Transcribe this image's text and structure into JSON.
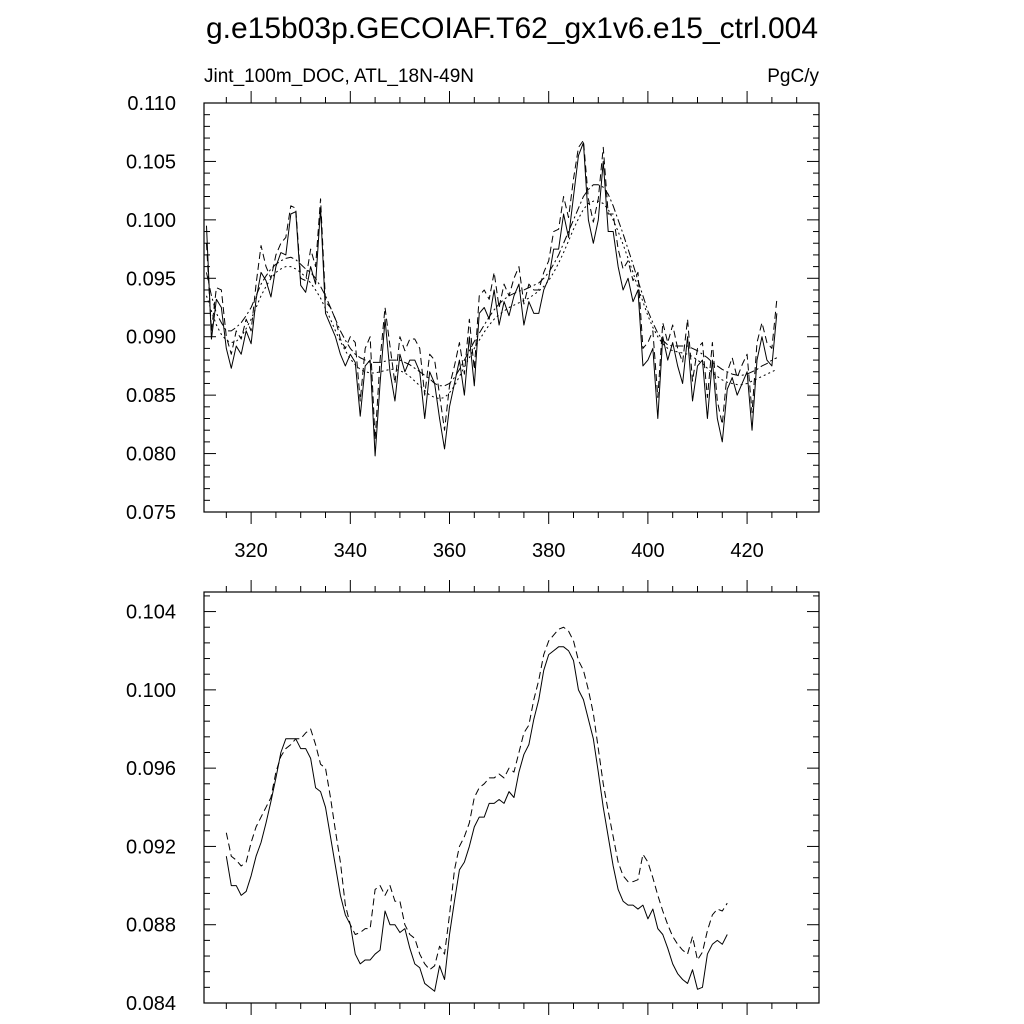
{
  "title": "g.e15b03p.GECOIAF.T62_gx1v6.e15_ctrl.004",
  "chart_data": [
    {
      "type": "line",
      "left_label": "Jint_100m_DOC, ATL_18N-49N",
      "right_label": "PgC/y",
      "xlim": [
        310.5,
        434.5
      ],
      "ylim": [
        0.075,
        0.11
      ],
      "xticks": [
        320,
        340,
        360,
        380,
        400,
        420
      ],
      "yticks": [
        0.075,
        0.08,
        0.085,
        0.09,
        0.095,
        0.1,
        0.105,
        0.11
      ],
      "ytick_labels": [
        "0.075",
        "0.080",
        "0.085",
        "0.090",
        "0.095",
        "0.100",
        "0.105",
        "0.110"
      ],
      "x_start": 311,
      "series": [
        {
          "style": "solid",
          "values": [
            0.0995,
            0.0898,
            0.0932,
            0.0925,
            0.089,
            0.0873,
            0.0892,
            0.0885,
            0.0905,
            0.0894,
            0.0932,
            0.0955,
            0.0948,
            0.0934,
            0.096,
            0.0972,
            0.097,
            0.1005,
            0.1007,
            0.0944,
            0.0938,
            0.096,
            0.0945,
            0.101,
            0.092,
            0.091,
            0.09,
            0.0885,
            0.0875,
            0.0885,
            0.0878,
            0.0832,
            0.0875,
            0.088,
            0.0798,
            0.086,
            0.0915,
            0.087,
            0.0845,
            0.0885,
            0.087,
            0.088,
            0.088,
            0.087,
            0.083,
            0.087,
            0.086,
            0.083,
            0.0804,
            0.084,
            0.086,
            0.088,
            0.085,
            0.09,
            0.0858,
            0.092,
            0.0925,
            0.0915,
            0.094,
            0.091,
            0.093,
            0.0918,
            0.0935,
            0.0945,
            0.091,
            0.093,
            0.092,
            0.092,
            0.094,
            0.095,
            0.0975,
            0.0975,
            0.1005,
            0.0985,
            0.102,
            0.1055,
            0.1066,
            0.1,
            0.098,
            0.1,
            0.105,
            0.099,
            0.099,
            0.096,
            0.094,
            0.095,
            0.093,
            0.094,
            0.0875,
            0.088,
            0.089,
            0.083,
            0.09,
            0.088,
            0.0895,
            0.0875,
            0.086,
            0.09,
            0.0845,
            0.0875,
            0.088,
            0.083,
            0.088,
            0.083,
            0.081,
            0.0855,
            0.0865,
            0.085,
            0.086,
            0.087,
            0.082,
            0.088,
            0.09,
            0.088,
            0.0875,
            0.092
          ]
        },
        {
          "style": "dashed",
          "values": [
            0.098,
            0.0905,
            0.0942,
            0.094,
            0.09,
            0.0885,
            0.0905,
            0.0898,
            0.0915,
            0.0905,
            0.0945,
            0.0978,
            0.096,
            0.095,
            0.097,
            0.098,
            0.0985,
            0.1012,
            0.101,
            0.095,
            0.0948,
            0.0975,
            0.096,
            0.1018,
            0.093,
            0.0925,
            0.0915,
            0.0898,
            0.089,
            0.09,
            0.0895,
            0.0845,
            0.089,
            0.09,
            0.0812,
            0.088,
            0.0925,
            0.0892,
            0.086,
            0.09,
            0.0888,
            0.0898,
            0.0898,
            0.089,
            0.085,
            0.0885,
            0.088,
            0.085,
            0.082,
            0.0858,
            0.0875,
            0.0895,
            0.0868,
            0.0915,
            0.0872,
            0.0935,
            0.094,
            0.0932,
            0.0955,
            0.0925,
            0.0945,
            0.0935,
            0.095,
            0.096,
            0.0928,
            0.0945,
            0.094,
            0.094,
            0.0955,
            0.0965,
            0.099,
            0.0992,
            0.102,
            0.1002,
            0.1035,
            0.1062,
            0.1068,
            0.1018,
            0.0998,
            0.1018,
            0.1062,
            0.1005,
            0.1005,
            0.0975,
            0.0958,
            0.0965,
            0.0948,
            0.0955,
            0.089,
            0.0895,
            0.0905,
            0.0848,
            0.0912,
            0.0895,
            0.091,
            0.089,
            0.0878,
            0.0915,
            0.0862,
            0.089,
            0.0895,
            0.0848,
            0.0895,
            0.0845,
            0.0825,
            0.087,
            0.0882,
            0.0865,
            0.0876,
            0.0885,
            0.0835,
            0.0895,
            0.0912,
            0.0895,
            0.089,
            0.0932
          ]
        },
        {
          "style": "dash-dot",
          "values": [
            0.0955,
            0.0935,
            0.092,
            0.0912,
            0.0905,
            0.0905,
            0.0908,
            0.0912,
            0.0918,
            0.0925,
            0.0935,
            0.0945,
            0.0952,
            0.0958,
            0.0962,
            0.0965,
            0.0967,
            0.0968,
            0.0966,
            0.0962,
            0.0958,
            0.0955,
            0.095,
            0.0943,
            0.0935,
            0.0925,
            0.0915,
            0.0905,
            0.0897,
            0.089,
            0.0885,
            0.0882,
            0.088,
            0.0878,
            0.0878,
            0.0878,
            0.0879,
            0.088,
            0.088,
            0.088,
            0.0878,
            0.0876,
            0.0873,
            0.087,
            0.0867,
            0.0864,
            0.086,
            0.0858,
            0.0858,
            0.086,
            0.0865,
            0.0872,
            0.088,
            0.0888,
            0.0896,
            0.0903,
            0.091,
            0.0917,
            0.0923,
            0.0928,
            0.0932,
            0.0935,
            0.0937,
            0.0939,
            0.094,
            0.0942,
            0.0944,
            0.0946,
            0.095,
            0.0955,
            0.0962,
            0.097,
            0.098,
            0.099,
            0.1,
            0.101,
            0.102,
            0.1026,
            0.103,
            0.103,
            0.1028,
            0.1022,
            0.1012,
            0.1,
            0.0988,
            0.0975,
            0.0962,
            0.0948,
            0.0935,
            0.0922,
            0.0912,
            0.0903,
            0.0897,
            0.0893,
            0.0892,
            0.0892,
            0.0892,
            0.0892,
            0.089,
            0.0888,
            0.0885,
            0.0882,
            0.0878,
            0.0875,
            0.0872,
            0.087,
            0.0868,
            0.0867,
            0.0867,
            0.0868,
            0.087,
            0.0872,
            0.0875,
            0.0877,
            0.088,
            0.0882
          ]
        },
        {
          "style": "dotted",
          "values": [
            0.0935,
            0.0922,
            0.091,
            0.0902,
            0.0897,
            0.0895,
            0.0896,
            0.09,
            0.0907,
            0.0915,
            0.0925,
            0.0935,
            0.0943,
            0.095,
            0.0955,
            0.0958,
            0.096,
            0.096,
            0.0958,
            0.0955,
            0.0951,
            0.0946,
            0.094,
            0.0933,
            0.0924,
            0.0915,
            0.0905,
            0.0896,
            0.0888,
            0.0881,
            0.0876,
            0.0872,
            0.087,
            0.0869,
            0.0869,
            0.087,
            0.0871,
            0.0872,
            0.0872,
            0.0871,
            0.0869,
            0.0866,
            0.0862,
            0.0858,
            0.0854,
            0.085,
            0.0848,
            0.0847,
            0.0848,
            0.0852,
            0.0858,
            0.0866,
            0.0874,
            0.0882,
            0.089,
            0.0897,
            0.0904,
            0.091,
            0.0915,
            0.0919,
            0.0922,
            0.0925,
            0.0927,
            0.0929,
            0.0931,
            0.0933,
            0.0936,
            0.0939,
            0.0943,
            0.0948,
            0.0955,
            0.0963,
            0.0972,
            0.0982,
            0.0992,
            0.1001,
            0.1009,
            0.1014,
            0.1016,
            0.1016,
            0.1014,
            0.1009,
            0.1,
            0.099,
            0.0979,
            0.0967,
            0.0955,
            0.0942,
            0.093,
            0.0918,
            0.0908,
            0.09,
            0.0894,
            0.089,
            0.0888,
            0.0887,
            0.0886,
            0.0885,
            0.0883,
            0.088,
            0.0877,
            0.0873,
            0.0869,
            0.0866,
            0.0863,
            0.0861,
            0.086,
            0.0859,
            0.0859,
            0.086,
            0.0862,
            0.0864,
            0.0866,
            0.0868,
            0.087,
            0.0872
          ]
        }
      ]
    },
    {
      "type": "line",
      "xlim": [
        310.5,
        434.5
      ],
      "ylim": [
        0.084,
        0.105
      ],
      "xticks": [
        320,
        340,
        360,
        380,
        400,
        420
      ],
      "yticks": [
        0.084,
        0.088,
        0.092,
        0.096,
        0.1,
        0.104
      ],
      "ytick_labels": [
        "0.084",
        "0.088",
        "0.092",
        "0.096",
        "0.100",
        "0.104"
      ],
      "x_start": 315,
      "series": [
        {
          "style": "solid",
          "values": [
            0.0915,
            0.09,
            0.09,
            0.0895,
            0.0897,
            0.0905,
            0.0915,
            0.0922,
            0.0932,
            0.0943,
            0.0955,
            0.0968,
            0.0975,
            0.0975,
            0.0975,
            0.097,
            0.097,
            0.0965,
            0.095,
            0.0948,
            0.094,
            0.0925,
            0.091,
            0.0895,
            0.0885,
            0.088,
            0.0865,
            0.086,
            0.0862,
            0.0862,
            0.0865,
            0.0867,
            0.0887,
            0.088,
            0.088,
            0.0876,
            0.0878,
            0.0868,
            0.086,
            0.0858,
            0.085,
            0.0848,
            0.0846,
            0.0859,
            0.0852,
            0.0875,
            0.0892,
            0.0908,
            0.0912,
            0.092,
            0.093,
            0.0935,
            0.0935,
            0.0942,
            0.0942,
            0.0944,
            0.0942,
            0.0948,
            0.0945,
            0.0958,
            0.0967,
            0.0972,
            0.0985,
            0.0995,
            0.101,
            0.1018,
            0.102,
            0.1022,
            0.1022,
            0.102,
            0.1015,
            0.1,
            0.0995,
            0.0985,
            0.0975,
            0.0958,
            0.094,
            0.0925,
            0.091,
            0.0898,
            0.0892,
            0.089,
            0.089,
            0.0888,
            0.089,
            0.0883,
            0.0888,
            0.0878,
            0.0875,
            0.0868,
            0.086,
            0.0855,
            0.0852,
            0.085,
            0.0857,
            0.0847,
            0.0848,
            0.0865,
            0.087,
            0.0872,
            0.087,
            0.0875
          ]
        },
        {
          "style": "dashed",
          "values": [
            0.0927,
            0.0915,
            0.0913,
            0.091,
            0.0912,
            0.0922,
            0.093,
            0.0935,
            0.094,
            0.0945,
            0.0958,
            0.0966,
            0.097,
            0.0972,
            0.0975,
            0.0975,
            0.0978,
            0.098,
            0.0972,
            0.0962,
            0.096,
            0.0945,
            0.0928,
            0.0912,
            0.089,
            0.088,
            0.0875,
            0.0876,
            0.0878,
            0.0878,
            0.0898,
            0.09,
            0.0895,
            0.09,
            0.0892,
            0.0892,
            0.088,
            0.0875,
            0.0873,
            0.0865,
            0.086,
            0.0857,
            0.0859,
            0.0869,
            0.0865,
            0.0885,
            0.0908,
            0.092,
            0.0925,
            0.0932,
            0.0945,
            0.095,
            0.0952,
            0.0955,
            0.0955,
            0.0957,
            0.0955,
            0.096,
            0.0958,
            0.0968,
            0.0978,
            0.0982,
            0.0995,
            0.1005,
            0.1018,
            0.1025,
            0.1028,
            0.1031,
            0.1032,
            0.103,
            0.1025,
            0.1015,
            0.101,
            0.1,
            0.0988,
            0.097,
            0.0952,
            0.0938,
            0.0925,
            0.0912,
            0.0905,
            0.0902,
            0.0902,
            0.0903,
            0.0916,
            0.0912,
            0.0904,
            0.0895,
            0.0887,
            0.088,
            0.0874,
            0.087,
            0.0867,
            0.0865,
            0.0874,
            0.0862,
            0.0866,
            0.0877,
            0.0885,
            0.0888,
            0.0887,
            0.0891
          ]
        }
      ]
    }
  ]
}
